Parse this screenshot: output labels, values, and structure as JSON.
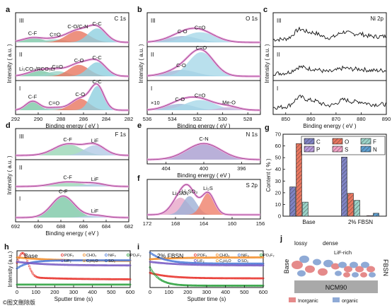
{
  "chart_data": [
    {
      "panel": "a",
      "type": "line",
      "title": "C 1s",
      "xlabel": "Binding energy ( eV )",
      "ylabel": "Intensity ( a.u. )",
      "xlim": [
        292,
        282
      ],
      "xticks": [
        "292",
        "290",
        "288",
        "286",
        "284",
        "282"
      ],
      "rows": [
        {
          "label": "III",
          "peaks": [
            {
              "name": "C-F",
              "x": 290.5,
              "h": 0.18,
              "w": 0.9,
              "color": "#7cc8a6"
            },
            {
              "name": "C=O",
              "x": 288.5,
              "h": 0.12,
              "w": 0.9,
              "color": "#9bd3c8"
            },
            {
              "name": "C-O/C-N",
              "x": 286.5,
              "h": 0.45,
              "w": 1.0,
              "color": "#e8765f"
            },
            {
              "name": "C-C",
              "x": 284.8,
              "h": 0.55,
              "w": 0.8,
              "color": "#8ecfe0"
            }
          ]
        },
        {
          "label": "II",
          "annot": "Li₂CO₃/RCO₃Li",
          "peaks": [
            {
              "name": "",
              "x": 289.9,
              "h": 0.22,
              "w": 1.0,
              "color": "#7cc8a6"
            },
            {
              "name": "C=O",
              "x": 288.3,
              "h": 0.2,
              "w": 0.9,
              "color": "#9bd3c8"
            },
            {
              "name": "C-O",
              "x": 286.4,
              "h": 0.45,
              "w": 0.9,
              "color": "#e8765f"
            },
            {
              "name": "C-C",
              "x": 284.8,
              "h": 0.55,
              "w": 0.8,
              "color": "#8ecfe0"
            }
          ]
        },
        {
          "label": "I",
          "peaks": [
            {
              "name": "C-F",
              "x": 290.5,
              "h": 0.35,
              "w": 0.6,
              "color": "#7cc8a6"
            },
            {
              "name": "C=O",
              "x": 288.6,
              "h": 0.1,
              "w": 0.8,
              "color": "#9bd3c8"
            },
            {
              "name": "C-O",
              "x": 286.3,
              "h": 0.45,
              "w": 0.8,
              "color": "#e8765f"
            },
            {
              "name": "C-C",
              "x": 284.8,
              "h": 0.95,
              "w": 0.6,
              "color": "#8ecfe0"
            }
          ]
        }
      ]
    },
    {
      "panel": "b",
      "type": "line",
      "title": "O 1s",
      "xlabel": "Binding energy ( eV )",
      "ylabel": "Intensity ( a.u. )",
      "xlim": [
        536,
        527
      ],
      "xticks": [
        "536",
        "534",
        "532",
        "530",
        "528"
      ],
      "rows": [
        {
          "label": "III",
          "peaks": [
            {
              "name": "C-O",
              "x": 533.2,
              "h": 0.25,
              "w": 1.2,
              "color": "#9db8d8"
            },
            {
              "name": "C=O",
              "x": 531.8,
              "h": 0.4,
              "w": 1.2,
              "color": "#a8d8e8"
            }
          ]
        },
        {
          "label": "II",
          "peaks": [
            {
              "name": "C-O",
              "x": 533.3,
              "h": 0.25,
              "w": 1.2,
              "color": "#9db8d8"
            },
            {
              "name": "C=O",
              "x": 531.7,
              "h": 0.95,
              "w": 1.0,
              "color": "#a8d8e8"
            }
          ]
        },
        {
          "label": "I",
          "annot": "×10",
          "peaks": [
            {
              "name": "C-O",
              "x": 533.4,
              "h": 0.25,
              "w": 1.1,
              "color": "#9db8d8"
            },
            {
              "name": "C=O",
              "x": 531.8,
              "h": 0.4,
              "w": 1.2,
              "color": "#a8d8e8"
            },
            {
              "name": "Me-O",
              "x": 529.5,
              "h": 0.12,
              "w": 0.8,
              "color": "#c9b6dc"
            }
          ]
        }
      ]
    },
    {
      "panel": "c",
      "type": "line",
      "title": "Ni 2p",
      "xlabel": "Binding energy ( eV )",
      "ylabel": "Intensity ( a.u. )",
      "xlim": [
        845,
        890
      ],
      "xticks": [
        "850",
        "860",
        "870",
        "880",
        "890"
      ],
      "rows": [
        {
          "label": "III"
        },
        {
          "label": "II"
        },
        {
          "label": "I"
        }
      ]
    },
    {
      "panel": "d",
      "type": "line",
      "title": "F 1s",
      "xlabel": "Binding energy ( eV )",
      "ylabel": "Intensity ( a.u. )",
      "xlim": [
        692,
        682
      ],
      "xticks": [
        "692",
        "690",
        "688",
        "686",
        "684",
        "682"
      ],
      "rows": [
        {
          "label": "III",
          "peaks": [
            {
              "name": "C-F",
              "x": 687.4,
              "h": 0.5,
              "w": 1.2,
              "color": "#9ad6b5"
            },
            {
              "name": "LiF",
              "x": 685.0,
              "h": 0.45,
              "w": 0.9,
              "color": "#b3cbe6"
            }
          ]
        },
        {
          "label": "II",
          "peaks": [
            {
              "name": "C-F",
              "x": 687.4,
              "h": 0.2,
              "w": 1.3,
              "color": "#9ad6b5"
            },
            {
              "name": "LiF",
              "x": 685.0,
              "h": 0.12,
              "w": 0.9,
              "color": "#b3cbe6"
            }
          ]
        },
        {
          "label": "I",
          "peaks": [
            {
              "name": "C-F",
              "x": 687.8,
              "h": 0.95,
              "w": 1.0,
              "color": "#7cc8a6"
            },
            {
              "name": "LiF",
              "x": 685.0,
              "h": 0.1,
              "w": 0.9,
              "color": "#b3cbe6"
            }
          ]
        }
      ]
    },
    {
      "panel": "e",
      "type": "line",
      "title": "N 1s",
      "xlabel": "Binding energy ( eV )",
      "xlim": [
        406,
        394
      ],
      "xticks": [
        "404",
        "400",
        "396"
      ],
      "peaks": [
        {
          "name": "C-N",
          "x": 400.0,
          "h": 0.6,
          "w": 1.8,
          "color": "#a89cd0"
        }
      ]
    },
    {
      "panel": "f",
      "type": "line",
      "title": "S 2p",
      "xlim": [
        172,
        156
      ],
      "xticks": [
        "172",
        "168",
        "164",
        "160",
        "156"
      ],
      "peaks": [
        {
          "name": "Li₂SO₄",
          "x": 167.3,
          "h": 0.55,
          "w": 1.2,
          "color": "#e7a6c8"
        },
        {
          "name": "Li₂SO₃",
          "x": 166.0,
          "h": 0.6,
          "w": 1.0,
          "color": "#9db0d6"
        },
        {
          "name": "Li₂S",
          "x": 163.4,
          "h": 0.7,
          "w": 0.9,
          "color": "#ef7f6a"
        }
      ]
    },
    {
      "panel": "g",
      "type": "bar",
      "xlabel": "",
      "ylabel": "Content ( % )",
      "ylim": [
        0,
        70
      ],
      "yticks": [
        "0",
        "10",
        "20",
        "30",
        "40",
        "50",
        "60",
        "70"
      ],
      "categories": [
        "Base",
        "2% FBSN"
      ],
      "series": [
        {
          "name": "C",
          "values": [
            25,
            50.5
          ],
          "color": "#7f83c4"
        },
        {
          "name": "P",
          "values": [
            0,
            0
          ],
          "color": "#b99bdc"
        },
        {
          "name": "O",
          "values": [
            62,
            19.5
          ],
          "color": "#e8765f"
        },
        {
          "name": "S",
          "values": [
            0,
            0.5
          ],
          "color": "#f3a3c6"
        },
        {
          "name": "F",
          "values": [
            12,
            13.5
          ],
          "color": "#9bd3c8"
        },
        {
          "name": "N",
          "values": [
            0,
            2.5
          ],
          "color": "#5d9fd1"
        }
      ]
    },
    {
      "panel": "h",
      "type": "scatter",
      "annot": "Base",
      "xlabel": "Sputter time (s)",
      "ylabel": "Intensity (a.u.)",
      "xlim": [
        0,
        600
      ],
      "xticks": [
        "0",
        "100",
        "200",
        "300",
        "400",
        "500",
        "600"
      ],
      "legend": [
        "POF₂",
        "CHO₂",
        "NiF₃",
        "PO₂F₂",
        "LiF₂",
        "C₂H₃O",
        "SO₂"
      ]
    },
    {
      "panel": "i",
      "type": "scatter",
      "annot": "2% FBSN",
      "xlabel": "Sputter time (s)",
      "xlim": [
        0,
        600
      ],
      "xticks": [
        "0",
        "100",
        "200",
        "300",
        "400",
        "500",
        "600"
      ],
      "legend": [
        "POF₂",
        "CHO₂",
        "NiF₃",
        "PO₂F₂",
        "LiF₂",
        "C₂H₃O",
        "SO₂"
      ]
    }
  ],
  "schematic_j": {
    "label_base": "Base",
    "label_fbsn": "FBSN",
    "lossy": "lossy",
    "dense": "dense",
    "lif": "LiF-rich",
    "substrate": "NCM90",
    "legend_inorganic": "Inorganic",
    "legend_organic": "organic",
    "inorganic_color": "#e58a8a",
    "organic_color": "#8faad6"
  },
  "panels": [
    "a",
    "b",
    "c",
    "d",
    "e",
    "f",
    "g",
    "h",
    "i",
    "j"
  ],
  "watermark": "©图文刪除版"
}
